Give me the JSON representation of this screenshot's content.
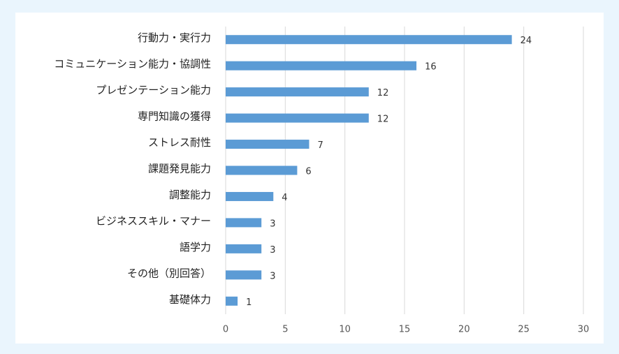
{
  "chart_data": {
    "type": "bar",
    "orientation": "horizontal",
    "categories": [
      "行動力・実行力",
      "コミュニケーション能力・協調性",
      "プレゼンテーション能力",
      "専門知識の獲得",
      "ストレス耐性",
      "課題発見能力",
      "調整能力",
      "ビジネススキル・マナー",
      "語学力",
      "その他（別回答）",
      "基礎体力"
    ],
    "values": [
      24,
      16,
      12,
      12,
      7,
      6,
      4,
      3,
      3,
      3,
      1
    ],
    "color": "#5b9bd5",
    "xlim": [
      0,
      30
    ],
    "xticks": [
      0,
      5,
      10,
      15,
      20,
      25,
      30
    ],
    "grid": true
  }
}
